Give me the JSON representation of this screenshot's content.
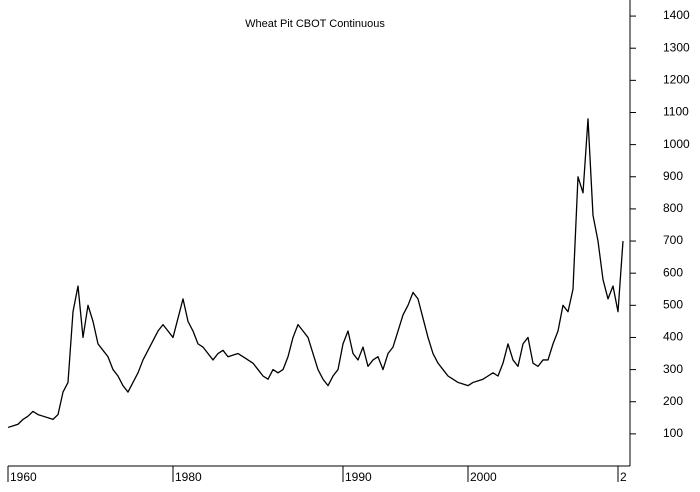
{
  "chart_data": {
    "type": "line",
    "title": "Wheat Pit CBOT Continuous",
    "series": [
      {
        "name": "Wheat",
        "color": "#000000",
        "values": [
          120,
          125,
          130,
          145,
          155,
          170,
          160,
          155,
          150,
          145,
          160,
          230,
          260,
          480,
          560,
          400,
          500,
          450,
          380,
          360,
          340,
          300,
          280,
          250,
          230,
          260,
          290,
          330,
          360,
          390,
          420,
          440,
          420,
          400,
          460,
          520,
          450,
          420,
          380,
          370,
          350,
          330,
          350,
          360,
          340,
          345,
          350,
          340,
          330,
          320,
          300,
          280,
          270,
          300,
          290,
          300,
          340,
          400,
          440,
          420,
          400,
          350,
          300,
          270,
          250,
          280,
          300,
          380,
          420,
          350,
          330,
          370,
          310,
          330,
          340,
          300,
          350,
          370,
          420,
          470,
          500,
          540,
          520,
          460,
          400,
          350,
          320,
          300,
          280,
          270,
          260,
          255,
          250,
          260,
          265,
          270,
          280,
          290,
          280,
          320,
          380,
          330,
          310,
          380,
          400,
          320,
          310,
          330,
          330,
          380,
          420,
          500,
          480,
          550,
          900,
          850,
          1080,
          780,
          700,
          580,
          520,
          560,
          480,
          700
        ]
      }
    ],
    "xticks": [
      {
        "value": 0,
        "label": "1960"
      },
      {
        "value": 33,
        "label": "1980"
      },
      {
        "value": 67,
        "label": "1990"
      },
      {
        "value": 92,
        "label": "2000"
      },
      {
        "value": 122,
        "label": "2"
      }
    ],
    "ylim": [
      0,
      1450
    ],
    "yticks": [
      100,
      200,
      300,
      400,
      500,
      600,
      700,
      800,
      900,
      1000,
      1100,
      1200,
      1300,
      1400
    ]
  }
}
